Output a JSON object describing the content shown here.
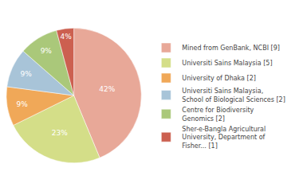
{
  "chart_data": {
    "type": "pie",
    "categories": [
      "Mined from GenBank, NCBI [9]",
      "Universiti Sains Malaysia [5]",
      "University of Dhaka [2]",
      "Universiti Sains Malaysia,\nSchool of Biological Sciences [2]",
      "Centre for Biodiversity\nGenomics [2]",
      "Sher-e-Bangla Agricultural\nUniversity, Department of\nFisher... [1]"
    ],
    "values": [
      42,
      23,
      9,
      9,
      9,
      4
    ],
    "value_labels": [
      "42%",
      "23%",
      "9%",
      "9%",
      "9%",
      "4%"
    ],
    "colors": [
      "#e8a898",
      "#d4de88",
      "#f0a858",
      "#a8c4d8",
      "#aac87a",
      "#cc6050"
    ],
    "data_labels": true,
    "legend": "right"
  }
}
